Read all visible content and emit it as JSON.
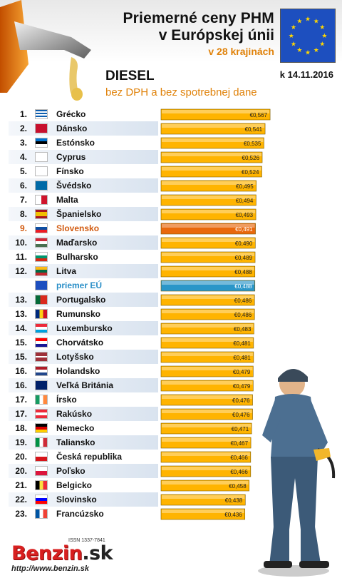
{
  "header": {
    "title_line1": "Priemerné ceny PHM",
    "title_line2": "v Európskej únii",
    "subtitle": "v 28 krajinách",
    "fuel": "DIESEL",
    "date": "k 14.11.2016",
    "note": "bez DPH a bez spotrebnej dane"
  },
  "colors": {
    "bar_default": "#ffb400",
    "bar_highlight": "#e9680c",
    "bar_average": "#2a96c8",
    "label_highlight": "#d25a0f",
    "label_average": "#2a8fc8",
    "subtitle": "#e0820a"
  },
  "chart_data": {
    "type": "bar",
    "orientation": "horizontal",
    "value_prefix": "€",
    "decimal_separator": ",",
    "rows": [
      {
        "rank": "1.",
        "country": "Grécko",
        "value": 0.567,
        "label": "€0,567",
        "flag": "greece-flag",
        "kind": "normal"
      },
      {
        "rank": "2.",
        "country": "Dánsko",
        "value": 0.541,
        "label": "€0,541",
        "flag": "denmark-flag",
        "kind": "normal"
      },
      {
        "rank": "3.",
        "country": "Estónsko",
        "value": 0.535,
        "label": "€0,535",
        "flag": "estonia-flag",
        "kind": "normal"
      },
      {
        "rank": "4.",
        "country": "Cyprus",
        "value": 0.526,
        "label": "€0,526",
        "flag": "cyprus-flag",
        "kind": "normal"
      },
      {
        "rank": "5.",
        "country": "Fínsko",
        "value": 0.524,
        "label": "€0,524",
        "flag": "finland-flag",
        "kind": "normal"
      },
      {
        "rank": "6.",
        "country": "Švédsko",
        "value": 0.495,
        "label": "€0,495",
        "flag": "sweden-flag",
        "kind": "normal"
      },
      {
        "rank": "7.",
        "country": "Malta",
        "value": 0.494,
        "label": "€0,494",
        "flag": "malta-flag",
        "kind": "normal"
      },
      {
        "rank": "8.",
        "country": "Španielsko",
        "value": 0.493,
        "label": "€0,493",
        "flag": "spain-flag",
        "kind": "normal"
      },
      {
        "rank": "9.",
        "country": "Slovensko",
        "value": 0.491,
        "label": "€0,491",
        "flag": "slovakia-flag",
        "kind": "highlight"
      },
      {
        "rank": "10.",
        "country": "Maďarsko",
        "value": 0.49,
        "label": "€0,490",
        "flag": "hungary-flag",
        "kind": "normal"
      },
      {
        "rank": "11.",
        "country": "Bulharsko",
        "value": 0.489,
        "label": "€0,489",
        "flag": "bulgaria-flag",
        "kind": "normal"
      },
      {
        "rank": "12.",
        "country": "Litva",
        "value": 0.488,
        "label": "€0,488",
        "flag": "lithuania-flag",
        "kind": "normal"
      },
      {
        "rank": "",
        "country": "priemer EÚ",
        "value": 0.488,
        "label": "€0,488",
        "flag": "eu-flag",
        "kind": "average"
      },
      {
        "rank": "13.",
        "country": "Portugalsko",
        "value": 0.486,
        "label": "€0,486",
        "flag": "portugal-flag",
        "kind": "normal"
      },
      {
        "rank": "13.",
        "country": "Rumunsko",
        "value": 0.486,
        "label": "€0,486",
        "flag": "romania-flag",
        "kind": "normal"
      },
      {
        "rank": "14.",
        "country": "Luxembursko",
        "value": 0.483,
        "label": "€0,483",
        "flag": "luxembourg-flag",
        "kind": "normal"
      },
      {
        "rank": "15.",
        "country": "Chorvátsko",
        "value": 0.481,
        "label": "€0,481",
        "flag": "croatia-flag",
        "kind": "normal"
      },
      {
        "rank": "15.",
        "country": "Lotyšsko",
        "value": 0.481,
        "label": "€0,481",
        "flag": "latvia-flag",
        "kind": "normal"
      },
      {
        "rank": "16.",
        "country": "Holandsko",
        "value": 0.479,
        "label": "€0,479",
        "flag": "netherlands-flag",
        "kind": "normal"
      },
      {
        "rank": "16.",
        "country": "Veľká Británia",
        "value": 0.479,
        "label": "€0,479",
        "flag": "uk-flag",
        "kind": "normal"
      },
      {
        "rank": "17.",
        "country": "Írsko",
        "value": 0.476,
        "label": "€0,476",
        "flag": "ireland-flag",
        "kind": "normal"
      },
      {
        "rank": "17.",
        "country": "Rakúsko",
        "value": 0.476,
        "label": "€0,476",
        "flag": "austria-flag",
        "kind": "normal"
      },
      {
        "rank": "18.",
        "country": "Nemecko",
        "value": 0.471,
        "label": "€0,471",
        "flag": "germany-flag",
        "kind": "normal"
      },
      {
        "rank": "19.",
        "country": "Taliansko",
        "value": 0.467,
        "label": "€0,467",
        "flag": "italy-flag",
        "kind": "normal"
      },
      {
        "rank": "20.",
        "country": "Česká republika",
        "value": 0.466,
        "label": "€0,466",
        "flag": "czechia-flag",
        "kind": "normal"
      },
      {
        "rank": "20.",
        "country": "Poľsko",
        "value": 0.466,
        "label": "€0,466",
        "flag": "poland-flag",
        "kind": "normal"
      },
      {
        "rank": "21.",
        "country": "Belgicko",
        "value": 0.458,
        "label": "€0,458",
        "flag": "belgium-flag",
        "kind": "normal"
      },
      {
        "rank": "22.",
        "country": "Slovinsko",
        "value": 0.438,
        "label": "€0,438",
        "flag": "slovenia-flag",
        "kind": "normal"
      },
      {
        "rank": "23.",
        "country": "Francúzsko",
        "value": 0.436,
        "label": "€0,436",
        "flag": "france-flag",
        "kind": "normal"
      }
    ]
  },
  "footer": {
    "issn": "ISSN 1337-7841",
    "logo_main": "Benzin",
    "logo_domain": ".sk",
    "url": "http://www.benzin.sk"
  }
}
